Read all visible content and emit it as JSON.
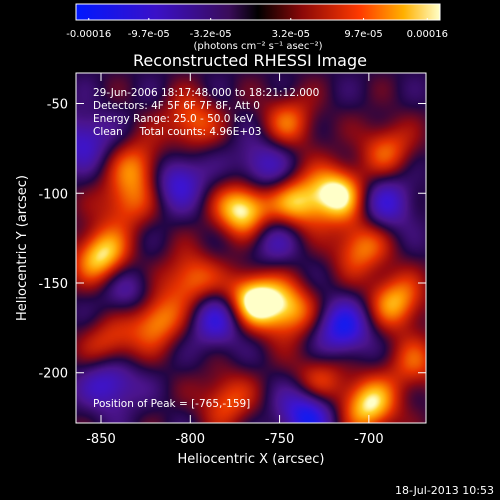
{
  "colorbar": {
    "ticks": [
      "-0.00016",
      "-9.7e-05",
      "-3.2e-05",
      "3.2e-05",
      "9.7e-05",
      "0.00016"
    ],
    "units": "(photons cm⁻² s⁻¹ asec⁻²)",
    "min": -0.00016,
    "max": 0.00016
  },
  "chart_data": {
    "type": "heatmap",
    "title": "Reconstructed RHESSI Image",
    "xlabel": "Heliocentric X (arcsec)",
    "ylabel": "Heliocentric Y (arcsec)",
    "xlim": [
      -864,
      -668
    ],
    "ylim": [
      -228,
      -33
    ],
    "x_ticks": [
      "-850",
      "-800",
      "-750",
      "-700"
    ],
    "x_tick_values": [
      -850,
      -800,
      -750,
      -700
    ],
    "y_ticks": [
      "-200",
      "-150",
      "-100",
      "-50"
    ],
    "y_tick_values": [
      -200,
      -150,
      -100,
      -50
    ],
    "blobs": [
      {
        "x": -770,
        "y": -109,
        "v": 1.0
      },
      {
        "x": -765,
        "y": -159,
        "v": 1.0
      },
      {
        "x": -740,
        "y": -105,
        "v": 0.7
      },
      {
        "x": -718,
        "y": -100,
        "v": 0.9
      },
      {
        "x": -828,
        "y": -85,
        "v": 0.6
      },
      {
        "x": -850,
        "y": -135,
        "v": 0.85
      },
      {
        "x": -837,
        "y": -105,
        "v": 0.5
      },
      {
        "x": -800,
        "y": -148,
        "v": 0.6
      },
      {
        "x": -820,
        "y": -170,
        "v": 0.7
      },
      {
        "x": -845,
        "y": -185,
        "v": 0.5
      },
      {
        "x": -745,
        "y": -165,
        "v": 0.7
      },
      {
        "x": -728,
        "y": -205,
        "v": 0.5
      },
      {
        "x": -700,
        "y": -218,
        "v": 0.85
      },
      {
        "x": -685,
        "y": -160,
        "v": 0.7
      },
      {
        "x": -705,
        "y": -130,
        "v": 0.6
      },
      {
        "x": -800,
        "y": -60,
        "v": 0.55
      },
      {
        "x": -745,
        "y": -60,
        "v": 0.5
      },
      {
        "x": -690,
        "y": -75,
        "v": 0.5
      },
      {
        "x": -675,
        "y": -195,
        "v": 0.45
      },
      {
        "x": -780,
        "y": -215,
        "v": 0.5
      },
      {
        "x": -808,
        "y": -92,
        "v": -0.6
      },
      {
        "x": -860,
        "y": -70,
        "v": -0.5
      },
      {
        "x": -785,
        "y": -170,
        "v": -0.6
      },
      {
        "x": -760,
        "y": -85,
        "v": -0.5
      },
      {
        "x": -715,
        "y": -175,
        "v": -0.7
      },
      {
        "x": -735,
        "y": -222,
        "v": -0.8
      },
      {
        "x": -690,
        "y": -105,
        "v": -0.5
      },
      {
        "x": -845,
        "y": -205,
        "v": -0.6
      },
      {
        "x": -835,
        "y": -155,
        "v": -0.4
      },
      {
        "x": -755,
        "y": -125,
        "v": -0.4
      }
    ]
  },
  "info": {
    "time_range": "29-Jun-2006 18:17:48.000 to 18:21:12.000",
    "detectors": "Detectors: 4F 5F 6F 7F 8F, Att 0",
    "energy": "Energy Range: 25.0 - 50.0 keV",
    "clean": "Clean     Total counts: 4.96E+03",
    "peak": "Position of Peak = [-765,-159]"
  },
  "footer": {
    "timestamp": "18-Jul-2013 10:53"
  }
}
